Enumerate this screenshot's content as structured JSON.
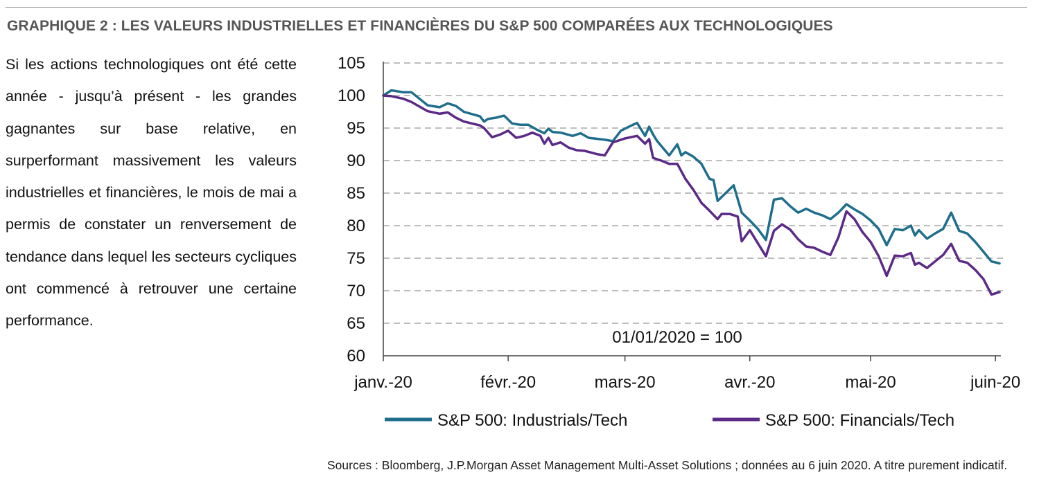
{
  "figure_title": "GRAPHIQUE 2 : LES VALEURS INDUSTRIELLES ET FINANCIÈRES DU S&P 500 COMPARÉES AUX TECHNOLOGIQUES",
  "body_text": "Si les actions technologiques ont été cette année - jusqu’à présent - les grandes gagnantes sur base relative, en surperformant massivement les valeurs industrielles et financières, le mois de mai a permis de constater un renversement de tendance dans lequel les secteurs cycliques ont commencé à retrouver une certaine performance.",
  "sources": "Sources : Bloomberg, J.P.Morgan Asset Management Multi-Asset Solutions ; données au 6 juin 2020.  A titre purement indicatif.",
  "colors": {
    "industrials": "#1f6e8c",
    "financials": "#5b2a86",
    "grid": "#bdbdbd"
  },
  "chart_data": {
    "type": "line",
    "title": "",
    "xlabel": "",
    "ylabel": "",
    "annotation": "01/01/2020 = 100",
    "ylim": [
      60,
      105
    ],
    "yticks": [
      60,
      65,
      70,
      75,
      80,
      85,
      90,
      95,
      100,
      105
    ],
    "grid": true,
    "legend_position": "bottom",
    "x_ticks": [
      {
        "label": "janv.-20",
        "date": "2020-01-01"
      },
      {
        "label": "févr.-20",
        "date": "2020-02-01"
      },
      {
        "label": "mars-20",
        "date": "2020-03-01"
      },
      {
        "label": "avr.-20",
        "date": "2020-04-01"
      },
      {
        "label": "mai-20",
        "date": "2020-05-01"
      },
      {
        "label": "juin-20",
        "date": "2020-06-01"
      }
    ],
    "x_range": [
      "2020-01-01",
      "2020-06-02"
    ],
    "series": [
      {
        "name": "S&P 500: Industrials/Tech",
        "color": "#1f6e8c",
        "points": [
          [
            "2020-01-01",
            100.0
          ],
          [
            "2020-01-03",
            100.8
          ],
          [
            "2020-01-06",
            100.5
          ],
          [
            "2020-01-08",
            100.5
          ],
          [
            "2020-01-10",
            99.5
          ],
          [
            "2020-01-12",
            98.5
          ],
          [
            "2020-01-15",
            98.2
          ],
          [
            "2020-01-17",
            98.8
          ],
          [
            "2020-01-19",
            98.4
          ],
          [
            "2020-01-21",
            97.5
          ],
          [
            "2020-01-25",
            96.8
          ],
          [
            "2020-01-26",
            96.0
          ],
          [
            "2020-01-27",
            96.4
          ],
          [
            "2020-01-29",
            96.6
          ],
          [
            "2020-01-31",
            96.9
          ],
          [
            "2020-02-02",
            95.7
          ],
          [
            "2020-02-04",
            95.5
          ],
          [
            "2020-02-06",
            95.5
          ],
          [
            "2020-02-08",
            94.8
          ],
          [
            "2020-02-10",
            94.2
          ],
          [
            "2020-02-11",
            94.9
          ],
          [
            "2020-02-12",
            94.4
          ],
          [
            "2020-02-14",
            94.3
          ],
          [
            "2020-02-17",
            93.8
          ],
          [
            "2020-02-19",
            94.2
          ],
          [
            "2020-02-21",
            93.5
          ],
          [
            "2020-02-25",
            93.2
          ],
          [
            "2020-02-27",
            93.0
          ],
          [
            "2020-02-29",
            94.6
          ],
          [
            "2020-03-02",
            95.2
          ],
          [
            "2020-03-04",
            95.8
          ],
          [
            "2020-03-06",
            93.8
          ],
          [
            "2020-03-07",
            95.2
          ],
          [
            "2020-03-08",
            94.0
          ],
          [
            "2020-03-09",
            93.0
          ],
          [
            "2020-03-12",
            90.8
          ],
          [
            "2020-03-14",
            92.5
          ],
          [
            "2020-03-15",
            90.8
          ],
          [
            "2020-03-16",
            91.3
          ],
          [
            "2020-03-18",
            90.6
          ],
          [
            "2020-03-20",
            89.5
          ],
          [
            "2020-03-22",
            87.2
          ],
          [
            "2020-03-23",
            87.0
          ],
          [
            "2020-03-24",
            83.8
          ],
          [
            "2020-03-26",
            85.0
          ],
          [
            "2020-03-28",
            86.2
          ],
          [
            "2020-03-30",
            82.0
          ],
          [
            "2020-04-01",
            80.8
          ],
          [
            "2020-04-03",
            79.5
          ],
          [
            "2020-04-05",
            77.8
          ],
          [
            "2020-04-07",
            84.0
          ],
          [
            "2020-04-09",
            84.2
          ],
          [
            "2020-04-11",
            83.0
          ],
          [
            "2020-04-13",
            82.0
          ],
          [
            "2020-04-15",
            82.6
          ],
          [
            "2020-04-17",
            82.0
          ],
          [
            "2020-04-19",
            81.6
          ],
          [
            "2020-04-21",
            81.0
          ],
          [
            "2020-04-23",
            82.0
          ],
          [
            "2020-04-25",
            83.3
          ],
          [
            "2020-04-27",
            82.5
          ],
          [
            "2020-04-29",
            81.8
          ],
          [
            "2020-05-01",
            80.8
          ],
          [
            "2020-05-03",
            79.5
          ],
          [
            "2020-05-05",
            77.0
          ],
          [
            "2020-05-07",
            79.5
          ],
          [
            "2020-05-09",
            79.3
          ],
          [
            "2020-05-11",
            80.0
          ],
          [
            "2020-05-12",
            78.5
          ],
          [
            "2020-05-13",
            79.3
          ],
          [
            "2020-05-15",
            78.0
          ],
          [
            "2020-05-17",
            78.8
          ],
          [
            "2020-05-19",
            79.5
          ],
          [
            "2020-05-21",
            82.0
          ],
          [
            "2020-05-23",
            79.2
          ],
          [
            "2020-05-25",
            78.8
          ],
          [
            "2020-05-27",
            77.5
          ],
          [
            "2020-05-29",
            76.0
          ],
          [
            "2020-05-31",
            74.5
          ],
          [
            "2020-06-02",
            74.2
          ]
        ]
      },
      {
        "name": "S&P 500: Financials/Tech",
        "color": "#5b2a86",
        "points": [
          [
            "2020-01-01",
            100.0
          ],
          [
            "2020-01-03",
            99.9
          ],
          [
            "2020-01-06",
            99.5
          ],
          [
            "2020-01-08",
            99.0
          ],
          [
            "2020-01-10",
            98.3
          ],
          [
            "2020-01-12",
            97.6
          ],
          [
            "2020-01-15",
            97.2
          ],
          [
            "2020-01-17",
            97.4
          ],
          [
            "2020-01-19",
            96.6
          ],
          [
            "2020-01-21",
            96.0
          ],
          [
            "2020-01-25",
            95.4
          ],
          [
            "2020-01-26",
            95.0
          ],
          [
            "2020-01-28",
            93.6
          ],
          [
            "2020-01-30",
            94.0
          ],
          [
            "2020-02-01",
            94.6
          ],
          [
            "2020-02-03",
            93.5
          ],
          [
            "2020-02-05",
            93.8
          ],
          [
            "2020-02-07",
            94.3
          ],
          [
            "2020-02-09",
            93.8
          ],
          [
            "2020-02-10",
            92.6
          ],
          [
            "2020-02-11",
            93.5
          ],
          [
            "2020-02-12",
            92.4
          ],
          [
            "2020-02-14",
            92.8
          ],
          [
            "2020-02-16",
            92.0
          ],
          [
            "2020-02-18",
            91.6
          ],
          [
            "2020-02-20",
            91.5
          ],
          [
            "2020-02-23",
            91.0
          ],
          [
            "2020-02-25",
            90.8
          ],
          [
            "2020-02-27",
            92.8
          ],
          [
            "2020-03-01",
            93.4
          ],
          [
            "2020-03-04",
            93.8
          ],
          [
            "2020-03-06",
            92.6
          ],
          [
            "2020-03-07",
            93.3
          ],
          [
            "2020-03-08",
            90.4
          ],
          [
            "2020-03-10",
            90.0
          ],
          [
            "2020-03-12",
            89.5
          ],
          [
            "2020-03-14",
            89.5
          ],
          [
            "2020-03-16",
            87.2
          ],
          [
            "2020-03-18",
            85.5
          ],
          [
            "2020-03-20",
            83.5
          ],
          [
            "2020-03-22",
            82.3
          ],
          [
            "2020-03-24",
            81.0
          ],
          [
            "2020-03-25",
            81.8
          ],
          [
            "2020-03-27",
            81.8
          ],
          [
            "2020-03-29",
            81.4
          ],
          [
            "2020-03-30",
            77.6
          ],
          [
            "2020-04-01",
            79.3
          ],
          [
            "2020-04-03",
            77.3
          ],
          [
            "2020-04-05",
            75.3
          ],
          [
            "2020-04-07",
            79.2
          ],
          [
            "2020-04-09",
            80.2
          ],
          [
            "2020-04-11",
            79.4
          ],
          [
            "2020-04-13",
            77.9
          ],
          [
            "2020-04-15",
            76.8
          ],
          [
            "2020-04-17",
            76.6
          ],
          [
            "2020-04-19",
            76.0
          ],
          [
            "2020-04-21",
            75.5
          ],
          [
            "2020-04-23",
            78.2
          ],
          [
            "2020-04-25",
            82.2
          ],
          [
            "2020-04-27",
            81.0
          ],
          [
            "2020-04-29",
            79.0
          ],
          [
            "2020-05-01",
            77.5
          ],
          [
            "2020-05-03",
            75.3
          ],
          [
            "2020-05-05",
            72.3
          ],
          [
            "2020-05-07",
            75.4
          ],
          [
            "2020-05-09",
            75.3
          ],
          [
            "2020-05-11",
            75.8
          ],
          [
            "2020-05-12",
            74.0
          ],
          [
            "2020-05-13",
            74.3
          ],
          [
            "2020-05-15",
            73.5
          ],
          [
            "2020-05-17",
            74.5
          ],
          [
            "2020-05-19",
            75.5
          ],
          [
            "2020-05-21",
            77.2
          ],
          [
            "2020-05-23",
            74.6
          ],
          [
            "2020-05-25",
            74.3
          ],
          [
            "2020-05-27",
            73.2
          ],
          [
            "2020-05-29",
            71.8
          ],
          [
            "2020-05-31",
            69.4
          ],
          [
            "2020-06-02",
            69.8
          ]
        ]
      }
    ]
  }
}
